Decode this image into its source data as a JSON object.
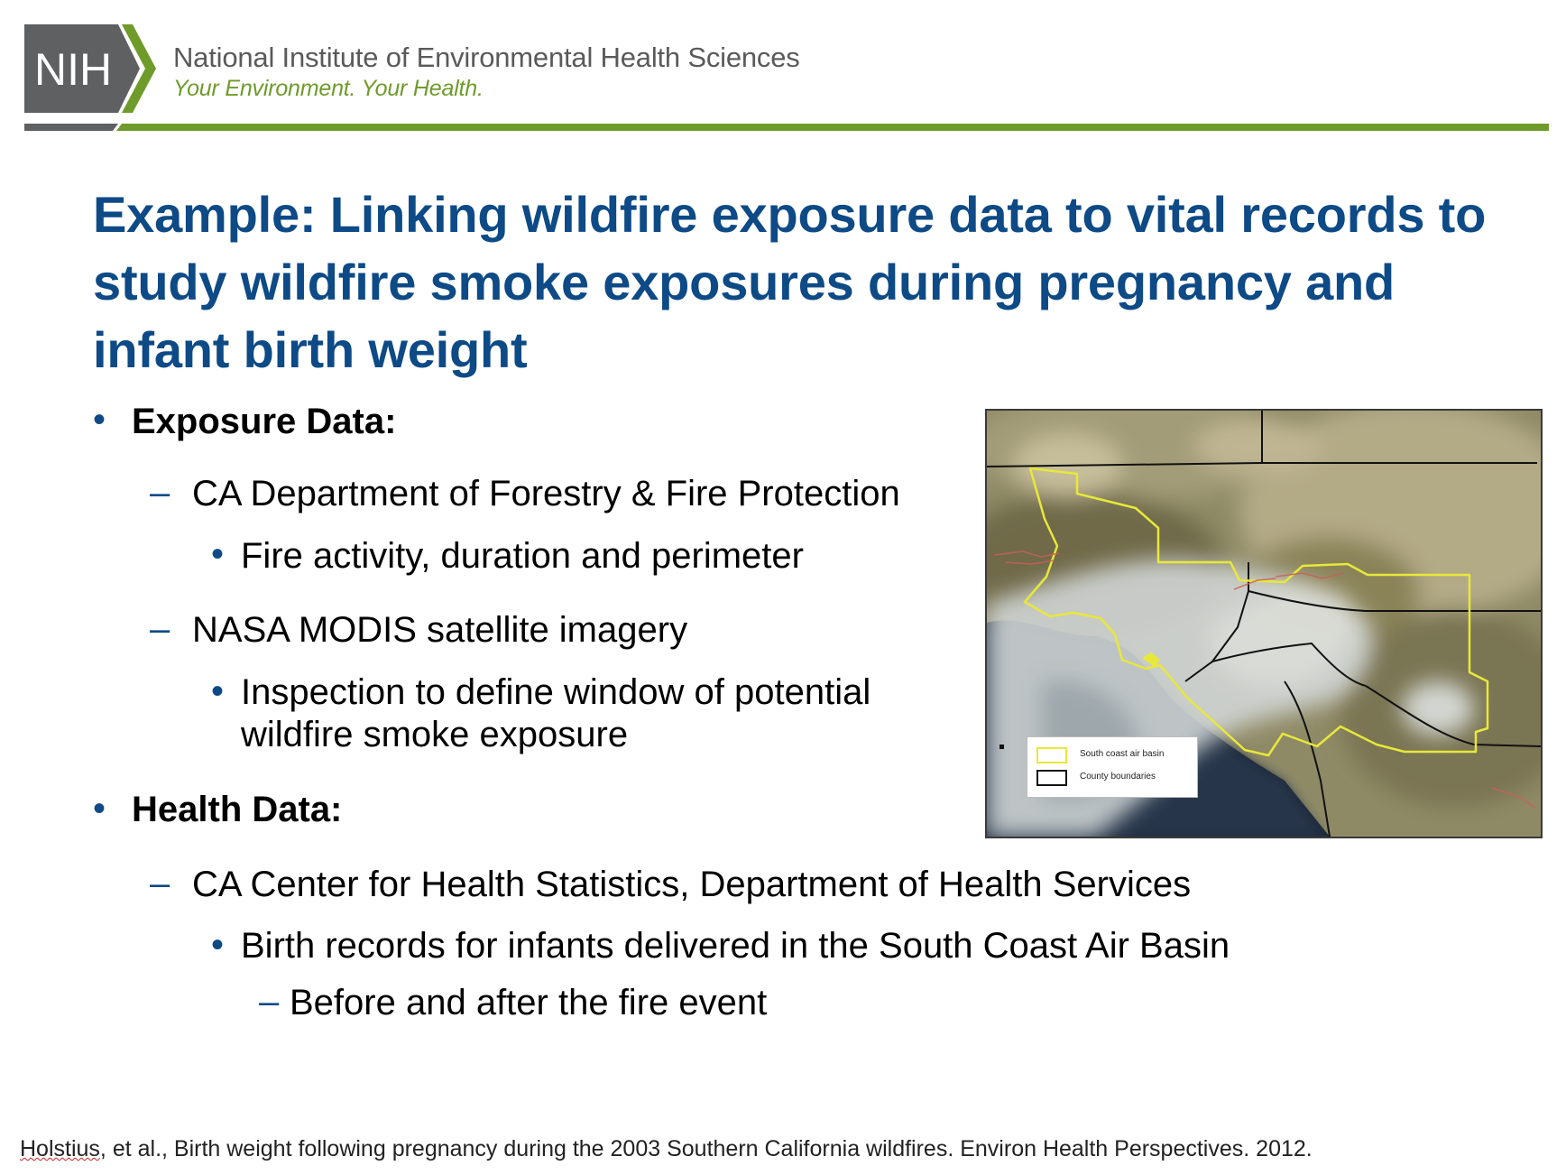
{
  "header": {
    "logo_text": "NIH",
    "org_name": "National Institute of Environmental Health Sciences",
    "tagline": "Your Environment. Your Health."
  },
  "title": "Example: Linking wildfire exposure data to vital records to study wildfire smoke exposures during pregnancy and infant birth weight",
  "exposure": {
    "heading": "Exposure Data:",
    "source1": "CA Department of Forestry & Fire Protection",
    "source1_detail": "Fire activity, duration and perimeter",
    "source2": "NASA MODIS satellite imagery",
    "source2_detail_line1": "Inspection to define window of potential",
    "source2_detail_line2": "wildfire smoke exposure"
  },
  "health": {
    "heading": "Health Data:",
    "source1": "CA Center for Health Statistics, Department of Health Services",
    "source1_detail": "Birth records for infants delivered in the South Coast Air Basin",
    "source1_subdetail": "Before and after the fire event"
  },
  "map": {
    "legend": [
      {
        "label": "South coast air basin",
        "color": "#e8e83a"
      },
      {
        "label": "County boundaries",
        "color": "#111111"
      }
    ]
  },
  "citation": {
    "author": "Holstius",
    "rest": ", et al., Birth weight following pregnancy during the 2003 Southern California wildfires. Environ Health Perspectives. 2012."
  }
}
